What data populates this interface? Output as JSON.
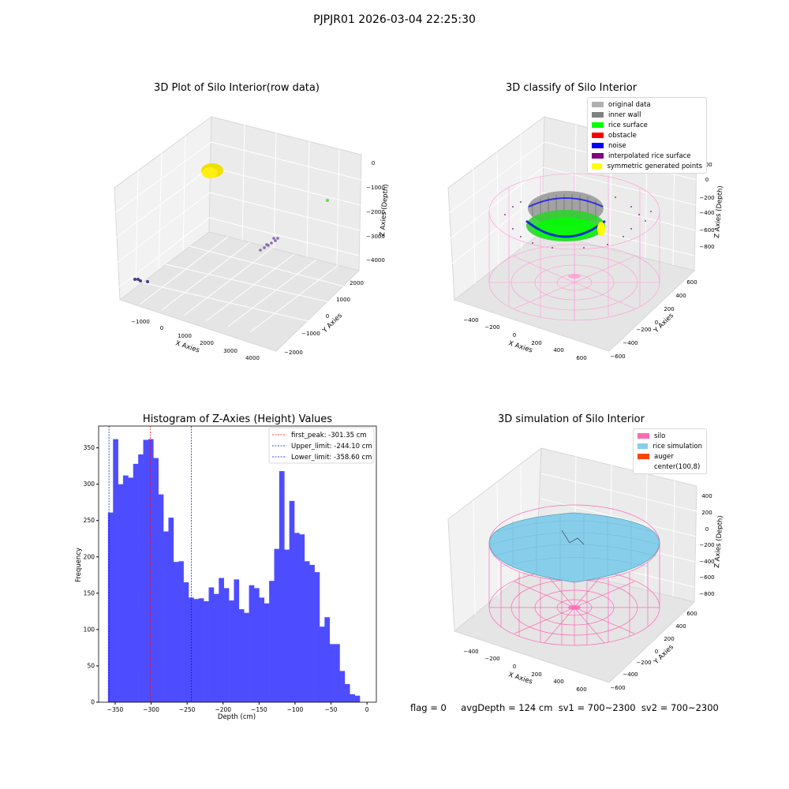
{
  "header": {
    "suptitle": "PJPJR01 2026-03-04 22:25:30"
  },
  "panel1": {
    "title": "3D Plot of Silo Interior(row data)",
    "xlabel": "X Axies",
    "ylabel": "Y Axies",
    "zlabel": "Z Axies (Depth)",
    "xticks": [
      "−1000",
      "0",
      "1000",
      "2000",
      "3000",
      "4000"
    ],
    "yticks": [
      "2000",
      "1000",
      "0",
      "−1000",
      "−2000"
    ],
    "zticks": [
      "0",
      "−1000",
      "−2000",
      "−3000",
      "−4000"
    ]
  },
  "panel2": {
    "title": "3D classify of Silo Interior",
    "xlabel": "X Axies",
    "ylabel": "Y Axies",
    "zlabel": "Z Axies (Depth)",
    "xticks": [
      "−400",
      "−200",
      "0",
      "200",
      "400",
      "600"
    ],
    "yticks": [
      "600",
      "400",
      "200",
      "0",
      "−200",
      "−400",
      "−600"
    ],
    "zticks": [
      "200",
      "0",
      "−200",
      "−400",
      "−600",
      "−800"
    ],
    "legend": [
      {
        "label": "original data",
        "color": "#b0b0b0"
      },
      {
        "label": "inner wall",
        "color": "#808080"
      },
      {
        "label": "rice surface",
        "color": "#00ff00"
      },
      {
        "label": "obstacle",
        "color": "#ff0000"
      },
      {
        "label": "noise",
        "color": "#0000ff"
      },
      {
        "label": "interpolated rice surface",
        "color": "#800080"
      },
      {
        "label": "symmetric generated points",
        "color": "#ffff00"
      }
    ]
  },
  "panel4": {
    "title": "3D simulation of Silo Interior",
    "xlabel": "X Axies",
    "ylabel": "Y Axies",
    "zlabel": "Z Axies (Depth)",
    "xticks": [
      "−400",
      "−200",
      "0",
      "200",
      "400",
      "600"
    ],
    "yticks": [
      "600",
      "400",
      "200",
      "0",
      "−200",
      "−400",
      "−600"
    ],
    "zticks": [
      "400",
      "200",
      "0",
      "−200",
      "−400",
      "−600",
      "−800"
    ],
    "legend": [
      {
        "label": "silo",
        "color": "#ff69b4"
      },
      {
        "label": "rice simulation",
        "color": "#87ceeb"
      },
      {
        "label": "auger",
        "color": "#ff4500"
      },
      {
        "label": "center(100,8)",
        "color": ""
      }
    ]
  },
  "footer": {
    "flag": "flag = 0",
    "stats": "avgDepth = 124 cm  sv1 = 700~2300  sv2 = 700~2300"
  },
  "chart_data": [
    {
      "type": "scatter",
      "title": "3D Plot of Silo Interior(row data)",
      "xlabel": "X Axies",
      "ylabel": "Y Axies",
      "zlabel": "Z Axies (Depth)"
    },
    {
      "type": "scatter",
      "title": "3D classify of Silo Interior",
      "xlabel": "X Axies",
      "ylabel": "Y Axies",
      "zlabel": "Z Axies (Depth)",
      "series": [
        {
          "name": "original data"
        },
        {
          "name": "inner wall"
        },
        {
          "name": "rice surface"
        },
        {
          "name": "obstacle"
        },
        {
          "name": "noise"
        },
        {
          "name": "interpolated rice surface"
        },
        {
          "name": "symmetric generated points"
        }
      ]
    },
    {
      "type": "bar",
      "title": "Histogram of Z-Axies (Height) Values",
      "xlabel": "Depth (cm)",
      "ylabel": "Frequency",
      "xlim": [
        -373,
        13
      ],
      "ylim": [
        0,
        380
      ],
      "xticks": [
        -350,
        -300,
        -250,
        -200,
        -150,
        -100,
        -50,
        0
      ],
      "yticks": [
        0,
        50,
        100,
        150,
        200,
        250,
        300,
        350
      ],
      "bin_start": -360.0,
      "bin_width": 7.0,
      "values": [
        261,
        362,
        300,
        312,
        309,
        328,
        341,
        361,
        362,
        336,
        286,
        235,
        254,
        193,
        194,
        165,
        144,
        142,
        143,
        139,
        158,
        149,
        171,
        157,
        140,
        169,
        128,
        123,
        161,
        157,
        144,
        136,
        167,
        211,
        318,
        210,
        277,
        233,
        231,
        194,
        189,
        179,
        104,
        117,
        80,
        80,
        43,
        25,
        11,
        9
      ],
      "vlines": [
        {
          "name": "first_peak: -301.35 cm",
          "x": -301.35,
          "color": "#ff0000"
        },
        {
          "name": "Upper_limit: -244.10 cm",
          "x": -244.1,
          "color": "#0000ff"
        },
        {
          "name": "Lower_limit: -358.60 cm",
          "x": -358.6,
          "color": "#0000ff"
        }
      ],
      "bar_color": "#4d4dff",
      "legend_position": "top-right"
    },
    {
      "type": "scatter",
      "title": "3D simulation of Silo Interior",
      "xlabel": "X Axies",
      "ylabel": "Y Axies",
      "zlabel": "Z Axies (Depth)",
      "series": [
        {
          "name": "silo"
        },
        {
          "name": "rice simulation"
        },
        {
          "name": "auger"
        },
        {
          "name": "center(100,8)"
        }
      ]
    }
  ]
}
